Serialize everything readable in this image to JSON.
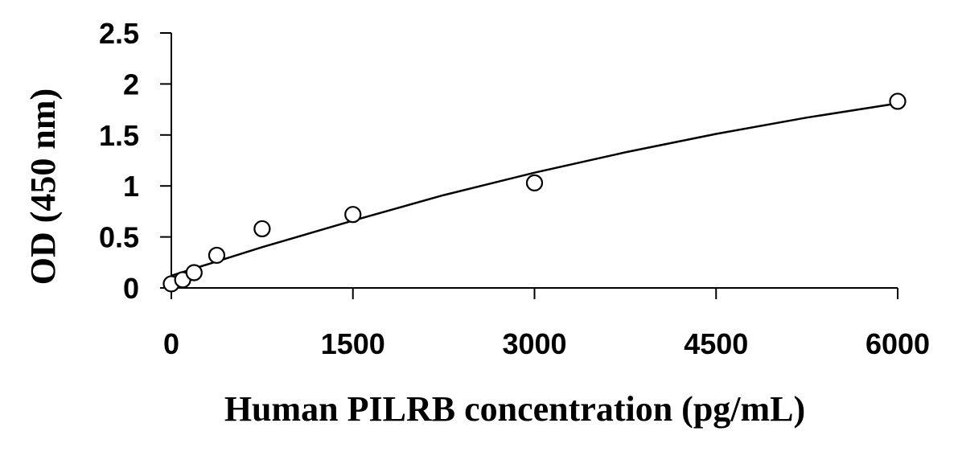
{
  "chart_data": {
    "type": "scatter",
    "title": "",
    "xlabel": "Human PILRB concentration (pg/mL)",
    "ylabel": "OD (450 nm)",
    "xlim": [
      0,
      6000
    ],
    "ylim": [
      0,
      2.5
    ],
    "x_ticks": [
      "0",
      "1500",
      "3000",
      "4500",
      "6000"
    ],
    "y_ticks": [
      "0",
      "0.5",
      "1",
      "1.5",
      "2",
      "2.5"
    ],
    "grid": false,
    "legend": "none",
    "series": [
      {
        "values_x": [
          0,
          94,
          188,
          375,
          750,
          1500,
          3000,
          6000
        ],
        "values_y": [
          0.04,
          0.08,
          0.15,
          0.32,
          0.58,
          0.72,
          1.03,
          1.83
        ],
        "marker": "open-circle"
      }
    ],
    "fit_curve": {
      "x": [
        0,
        750,
        1500,
        2250,
        3000,
        3750,
        4500,
        5250,
        6000
      ],
      "y": [
        0.12,
        0.4,
        0.66,
        0.91,
        1.13,
        1.33,
        1.51,
        1.67,
        1.81
      ]
    },
    "colors": {
      "marker_stroke": "#000000",
      "line": "#000000"
    }
  }
}
